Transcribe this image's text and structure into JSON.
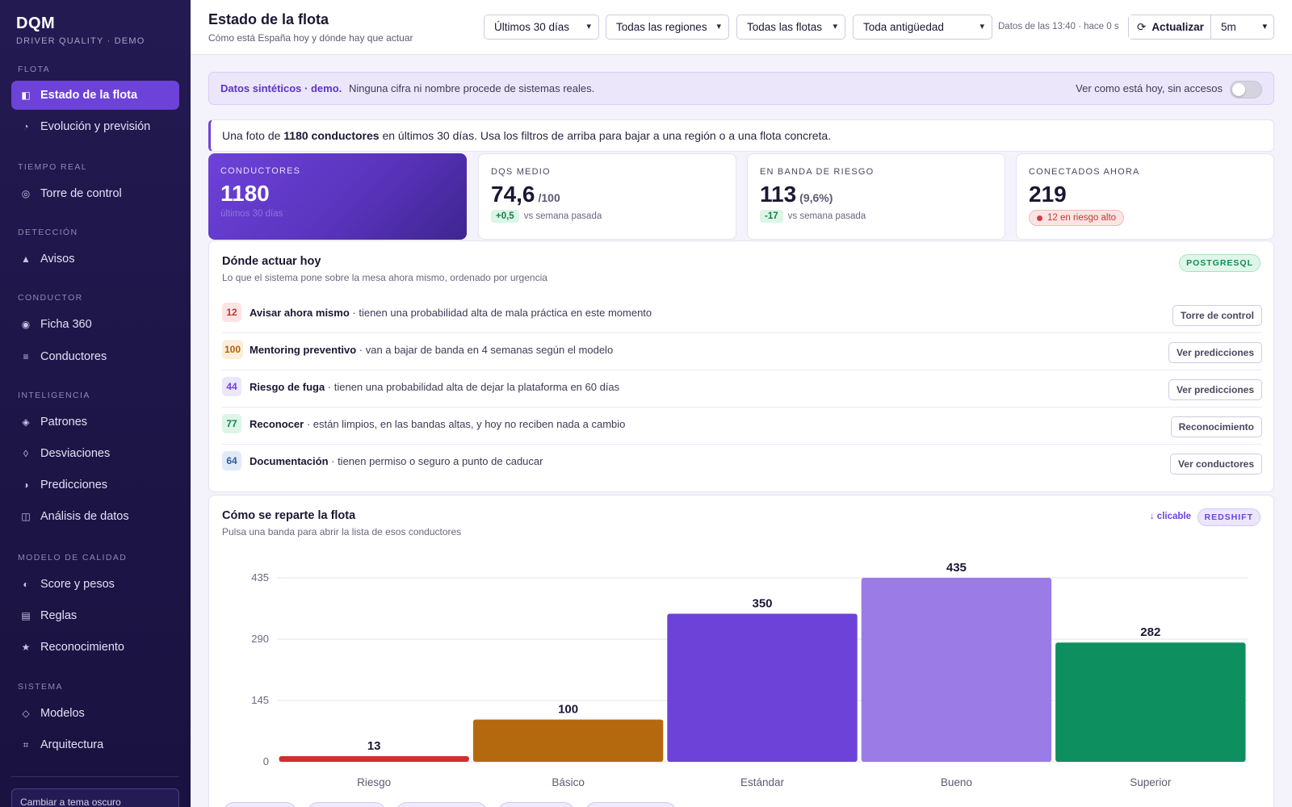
{
  "brand": {
    "title": "DQM",
    "subtitle": "DRIVER QUALITY · DEMO"
  },
  "sidebar": {
    "sections": [
      {
        "label": "FLOTA",
        "items": [
          {
            "label": "Estado de la flota",
            "icon": "panel-icon",
            "glyph": "◧",
            "active": true
          },
          {
            "label": "Evolución y previsión",
            "icon": "pie-icon",
            "glyph": "◔",
            "active": false
          }
        ]
      },
      {
        "label": "TIEMPO REAL",
        "items": [
          {
            "label": "Torre de control",
            "icon": "target-icon",
            "glyph": "◎",
            "active": false
          }
        ]
      },
      {
        "label": "DETECCIÓN",
        "items": [
          {
            "label": "Avisos",
            "icon": "warning-icon",
            "glyph": "▲",
            "active": false
          }
        ]
      },
      {
        "label": "CONDUCTOR",
        "items": [
          {
            "label": "Ficha 360",
            "icon": "radio-icon",
            "glyph": "◉",
            "active": false
          },
          {
            "label": "Conductores",
            "icon": "list-icon",
            "glyph": "≡",
            "active": false
          }
        ]
      },
      {
        "label": "INTELIGENCIA",
        "items": [
          {
            "label": "Patrones",
            "icon": "diamond-icon",
            "glyph": "◈",
            "active": false
          },
          {
            "label": "Desviaciones",
            "icon": "lozenge-icon",
            "glyph": "◊",
            "active": false
          },
          {
            "label": "Predicciones",
            "icon": "half-circle-icon",
            "glyph": "◑",
            "active": false
          },
          {
            "label": "Análisis de datos",
            "icon": "split-square-icon",
            "glyph": "◫",
            "active": false
          }
        ]
      },
      {
        "label": "MODELO DE CALIDAD",
        "items": [
          {
            "label": "Score y pesos",
            "icon": "half-moon-icon",
            "glyph": "◐",
            "active": false
          },
          {
            "label": "Reglas",
            "icon": "rules-icon",
            "glyph": "▤",
            "active": false
          },
          {
            "label": "Reconocimiento",
            "icon": "star-icon",
            "glyph": "★",
            "active": false
          }
        ]
      },
      {
        "label": "SISTEMA",
        "items": [
          {
            "label": "Modelos",
            "icon": "outline-diamond-icon",
            "glyph": "◇",
            "active": false
          },
          {
            "label": "Arquitectura",
            "icon": "grid-icon",
            "glyph": "⌗",
            "active": false
          }
        ]
      }
    ],
    "theme_button": "Cambiar a tema oscuro"
  },
  "header": {
    "title": "Estado de la flota",
    "subtitle": "Cómo está España hoy y dónde hay que actuar",
    "filters": [
      "Últimos 30 días",
      "Todas las regiones",
      "Todas las flotas",
      "Toda antigüedad"
    ],
    "data_time": "Datos de las 13:40 · hace 0 s",
    "refresh_icon": "⟳",
    "refresh_label": "Actualizar",
    "interval": "5m"
  },
  "banner": {
    "strong": "Datos sintéticos · demo.",
    "text": "Ninguna cifra ni nombre procede de sistemas reales.",
    "toggle_label": "Ver como está hoy, sin accesos"
  },
  "summary": {
    "pre": "Una foto de ",
    "strong": "1180 conductores",
    "post": " en últimos 30 días. Usa los filtros de arriba para bajar a una región o a una flota concreta."
  },
  "kpis": {
    "drivers": {
      "label": "CONDUCTORES",
      "value": "1180",
      "foot": "últimos 30 días"
    },
    "dqs": {
      "label": "DQS MEDIO",
      "value": "74,6",
      "unit": "/100",
      "delta": "+0,5",
      "vs": "vs semana pasada"
    },
    "risk": {
      "label": "EN BANDA DE RIESGO",
      "value": "113",
      "unit": "(9,6%)",
      "delta": "-17",
      "vs": "vs semana pasada"
    },
    "connected": {
      "label": "CONECTADOS AHORA",
      "value": "219",
      "pill": "12 en riesgo alto"
    }
  },
  "actions": {
    "title": "Dónde actuar hoy",
    "subtitle": "Lo que el sistema pone sobre la mesa ahora mismo, ordenado por urgencia",
    "tag": "POSTGRESQL",
    "rows": [
      {
        "count": "12",
        "title": "Avisar ahora mismo",
        "desc": " · tienen una probabilidad alta de mala práctica en este momento",
        "button": "Torre de control"
      },
      {
        "count": "100",
        "title": "Mentoring preventivo",
        "desc": " · van a bajar de banda en 4 semanas según el modelo",
        "button": "Ver predicciones"
      },
      {
        "count": "44",
        "title": "Riesgo de fuga",
        "desc": " · tienen una probabilidad alta de dejar la plataforma en 60 días",
        "button": "Ver predicciones"
      },
      {
        "count": "77",
        "title": "Reconocer",
        "desc": " · están limpios, en las bandas altas, y hoy no reciben nada a cambio",
        "button": "Reconocimiento"
      },
      {
        "count": "64",
        "title": "Documentación",
        "desc": " · tienen permiso o seguro a punto de caducar",
        "button": "Ver conductores"
      }
    ]
  },
  "distribution": {
    "title": "Cómo se reparte la flota",
    "subtitle": "Pulsa una banda para abrir la lista de esos conductores",
    "clickable": "↓ clicable",
    "tag": "REDSHIFT"
  },
  "chart_data": {
    "type": "bar",
    "categories": [
      "Riesgo",
      "Básico",
      "Estándar",
      "Bueno",
      "Superior"
    ],
    "values": [
      13,
      100,
      350,
      435,
      282
    ],
    "colors": [
      "#d12f2f",
      "#b5690f",
      "#6d42d9",
      "#9b7be6",
      "#0e8f5f"
    ],
    "yticks": [
      0,
      145,
      290,
      435
    ],
    "ylim": [
      0,
      435
    ],
    "grid": true,
    "title": "",
    "xlabel": "",
    "ylabel": ""
  }
}
